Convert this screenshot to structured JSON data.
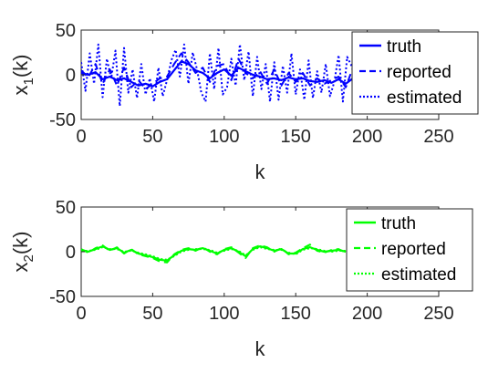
{
  "chart_data": [
    {
      "type": "line",
      "ylabel": "x_1(k)",
      "ylabel_main": "x",
      "ylabel_sub": "1",
      "ylabel_suffix": "(k)",
      "xlabel": "k",
      "xlim": [
        0,
        250
      ],
      "ylim": [
        -50,
        50
      ],
      "xticks": [
        "0",
        "50",
        "100",
        "150",
        "200",
        "250"
      ],
      "yticks": [
        "50",
        "0",
        "-50"
      ],
      "color": "#0000ff",
      "legend_position": "top-right",
      "legend": [
        "truth",
        "reported",
        "estimated"
      ],
      "series": [
        {
          "name": "truth",
          "style": "solid",
          "x": [
            0,
            5,
            10,
            15,
            20,
            25,
            30,
            35,
            40,
            45,
            50,
            55,
            60,
            65,
            70,
            75,
            80,
            85,
            90,
            95,
            100,
            105,
            110,
            115,
            120,
            125,
            130,
            135,
            140,
            145,
            150,
            155,
            160,
            165,
            170,
            175,
            180,
            185,
            190
          ],
          "y": [
            2,
            0,
            3,
            -5,
            -2,
            -6,
            -4,
            -8,
            -12,
            -10,
            -13,
            -8,
            -5,
            5,
            15,
            12,
            5,
            2,
            -4,
            2,
            6,
            -1,
            8,
            4,
            0,
            -2,
            -5,
            -4,
            -6,
            -3,
            -5,
            -4,
            -7,
            -8,
            -6,
            -9,
            -5,
            -10,
            -4
          ]
        },
        {
          "name": "reported",
          "style": "dashed",
          "x": [
            0,
            5,
            10,
            15,
            20,
            25,
            30,
            35,
            40,
            45,
            50,
            55,
            60,
            65,
            70,
            75,
            80,
            85,
            90,
            95,
            100,
            105,
            110,
            115,
            120,
            125,
            130,
            135,
            140,
            145,
            150,
            155,
            160,
            165,
            170,
            175,
            180,
            185,
            190
          ],
          "y": [
            5,
            -3,
            12,
            -10,
            6,
            -12,
            8,
            -14,
            -6,
            -16,
            -10,
            -4,
            -2,
            12,
            24,
            14,
            2,
            8,
            -8,
            10,
            12,
            -6,
            18,
            2,
            -4,
            4,
            -10,
            6,
            -12,
            2,
            -8,
            2,
            -12,
            -4,
            -10,
            -6,
            -2,
            -14,
            8
          ]
        },
        {
          "name": "estimated",
          "style": "dotted",
          "x": [
            0,
            3,
            6,
            9,
            12,
            15,
            18,
            21,
            24,
            27,
            30,
            33,
            36,
            39,
            42,
            45,
            48,
            51,
            54,
            57,
            60,
            63,
            66,
            69,
            72,
            75,
            78,
            81,
            84,
            87,
            90,
            93,
            96,
            99,
            102,
            105,
            108,
            111,
            114,
            117,
            120,
            123,
            126,
            129,
            132,
            135,
            138,
            141,
            144,
            147,
            150,
            153,
            156,
            159,
            162,
            165,
            168,
            171,
            174,
            177,
            180,
            183,
            186,
            189
          ],
          "y": [
            14,
            -18,
            24,
            -10,
            34,
            -25,
            18,
            -4,
            27,
            -35,
            30,
            -20,
            6,
            -26,
            12,
            -22,
            -4,
            -30,
            8,
            -24,
            -6,
            16,
            28,
            -2,
            34,
            -10,
            25,
            6,
            -20,
            -30,
            24,
            -16,
            30,
            -22,
            -14,
            18,
            -12,
            34,
            -6,
            26,
            -24,
            20,
            -16,
            12,
            -30,
            14,
            -28,
            10,
            -20,
            24,
            -22,
            6,
            -28,
            16,
            -26,
            4,
            -20,
            12,
            -24,
            -8,
            22,
            -30,
            20,
            10
          ]
        }
      ]
    },
    {
      "type": "line",
      "ylabel": "x_2(k)",
      "ylabel_main": "x",
      "ylabel_sub": "2",
      "ylabel_suffix": "(k)",
      "xlabel": "k",
      "xlim": [
        0,
        250
      ],
      "ylim": [
        -50,
        50
      ],
      "xticks": [
        "0",
        "50",
        "100",
        "150",
        "200",
        "250"
      ],
      "yticks": [
        "50",
        "0",
        "-50"
      ],
      "color": "#00ff00",
      "legend_position": "top-right",
      "legend": [
        "truth",
        "reported",
        "estimated"
      ],
      "series": [
        {
          "name": "truth",
          "style": "solid",
          "x": [
            0,
            5,
            10,
            15,
            20,
            25,
            30,
            35,
            40,
            45,
            50,
            55,
            60,
            65,
            70,
            75,
            80,
            85,
            90,
            95,
            100,
            105,
            110,
            115,
            120,
            125,
            130,
            135,
            140,
            145,
            150,
            155,
            160,
            165,
            170,
            175,
            180,
            185
          ],
          "y": [
            2,
            0,
            3,
            6,
            2,
            4,
            -1,
            2,
            -2,
            -4,
            -6,
            -9,
            -10,
            -4,
            1,
            3,
            2,
            4,
            1,
            -2,
            2,
            4,
            0,
            -5,
            3,
            6,
            4,
            1,
            3,
            -2,
            -2,
            3,
            5,
            2,
            0,
            1,
            2,
            0
          ]
        },
        {
          "name": "reported",
          "style": "dashed",
          "x": [
            0,
            5,
            10,
            15,
            20,
            25,
            30,
            35,
            40,
            45,
            50,
            55,
            60,
            65,
            70,
            75,
            80,
            85,
            90,
            95,
            100,
            105,
            110,
            115,
            120,
            125,
            130,
            135,
            140,
            145,
            150,
            155,
            160,
            165,
            170,
            175,
            180,
            185
          ],
          "y": [
            3,
            -1,
            4,
            7,
            1,
            5,
            -2,
            3,
            -3,
            -5,
            -7,
            -11,
            -12,
            -3,
            2,
            4,
            1,
            5,
            0,
            -3,
            3,
            5,
            -1,
            -7,
            4,
            7,
            5,
            0,
            4,
            -3,
            -1,
            4,
            8,
            1,
            -1,
            2,
            3,
            -1
          ]
        },
        {
          "name": "estimated",
          "style": "dotted",
          "x": [
            0,
            5,
            10,
            15,
            20,
            25,
            30,
            35,
            40,
            45,
            50,
            55,
            60,
            65,
            70,
            75,
            80,
            85,
            90,
            95,
            100,
            105,
            110,
            115,
            120,
            125,
            130,
            135,
            140,
            145,
            150,
            155,
            160,
            165,
            170,
            175,
            180,
            185
          ],
          "y": [
            1,
            1,
            2,
            5,
            3,
            3,
            0,
            1,
            -1,
            -3,
            -5,
            -8,
            -9,
            -5,
            0,
            2,
            3,
            3,
            2,
            -1,
            1,
            3,
            1,
            -4,
            2,
            5,
            3,
            2,
            2,
            -1,
            -3,
            2,
            4,
            3,
            1,
            0,
            1,
            1
          ]
        }
      ]
    }
  ]
}
